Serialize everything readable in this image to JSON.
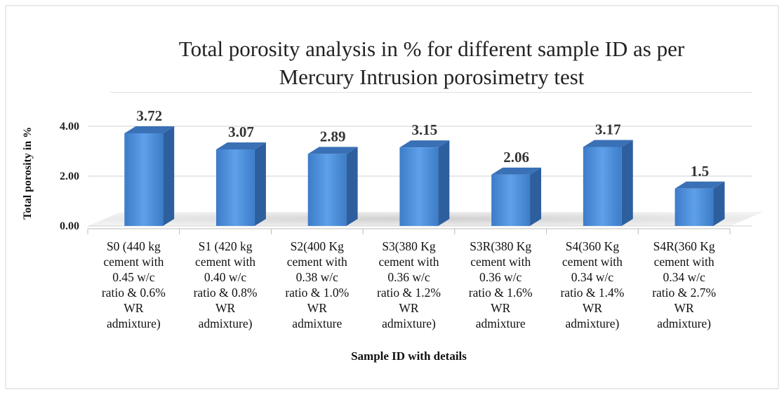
{
  "chart_data": {
    "type": "bar",
    "title": "Total porosity analysis in % for different sample ID as per Mercury Intrusion porosimetry test",
    "x_label": "Sample ID with details",
    "y_label": "Total porosity in %",
    "categories": [
      "S0 (440 kg\ncement with\n0.45 w/c\nratio & 0.6%\nWR\nadmixture)",
      "S1 (420 kg\ncement with\n0.40 w/c\nratio & 0.8%\nWR\nadmixture)",
      "S2(400 Kg\ncement with\n0.38 w/c\nratio & 1.0%\nWR\nadmixture",
      "S3(380 Kg\ncement with\n0.36 w/c\nratio & 1.2%\nWR\nadmixture)",
      "S3R(380 Kg\ncement with\n0.36 w/c\nratio & 1.6%\nWR\nadmixture",
      "S4(360 Kg\ncement with\n0.34 w/c\nratio & 1.4%\nWR\nadmixture)",
      "S4R(360 Kg\ncement with\n0.34 w/c\nratio & 2.7%\nWR\nadmixture)"
    ],
    "values": [
      3.72,
      3.07,
      2.89,
      3.15,
      2.06,
      3.17,
      1.5
    ],
    "color": "#4f8fd8",
    "ylim": [
      0,
      4.8
    ],
    "yticks": [
      {
        "value": 0,
        "label": "0.00"
      },
      {
        "value": 2,
        "label": "2.00"
      },
      {
        "value": 4,
        "label": "4.00"
      }
    ],
    "grid": true
  }
}
